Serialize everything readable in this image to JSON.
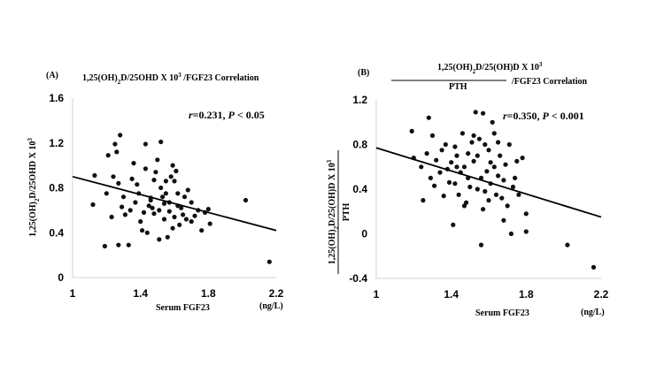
{
  "chart_data": [
    {
      "type": "scatter",
      "panel_label": "(A)",
      "title": "1,25(OH)2D/25OHD X 10³ /FGF23 Correlation",
      "title_parts": {
        "pre": "1,25(OH)",
        "sub": "2",
        "post": "D/25OHD X 10",
        "sup": "3",
        "tail": " /FGF23 Correlation"
      },
      "xlabel": "Serum FGF23",
      "xunit": "(ng/L)",
      "ylabel": "1,25(OH)2D/25OHD X 10³",
      "ylabel_parts": {
        "pre": "1,25(OH)",
        "sub": "2",
        "post": "D/25OHD X 10",
        "sup": "3"
      },
      "xlim": [
        1,
        2.2
      ],
      "ylim": [
        0,
        1.6
      ],
      "xticks": [
        "1",
        "1.4",
        "1.8",
        "2.2"
      ],
      "yticks": [
        "0",
        "0.4",
        "0.8",
        "1.2",
        "1.6"
      ],
      "annotation": {
        "r_sym": "r",
        "r_val": "=0.231, ",
        "p_sym": "P",
        "p_val": " < 0.05"
      },
      "trend": {
        "x": [
          1,
          2.2
        ],
        "y": [
          0.9,
          0.42
        ]
      },
      "points": [
        [
          1.13,
          0.91
        ],
        [
          1.12,
          0.65
        ],
        [
          1.19,
          0.28
        ],
        [
          1.2,
          0.75
        ],
        [
          1.21,
          1.09
        ],
        [
          1.23,
          0.54
        ],
        [
          1.24,
          0.9
        ],
        [
          1.25,
          1.19
        ],
        [
          1.26,
          1.12
        ],
        [
          1.27,
          0.29
        ],
        [
          1.28,
          1.27
        ],
        [
          1.27,
          0.84
        ],
        [
          1.29,
          0.63
        ],
        [
          1.3,
          0.72
        ],
        [
          1.31,
          0.56
        ],
        [
          1.34,
          0.6
        ],
        [
          1.33,
          0.29
        ],
        [
          1.35,
          0.88
        ],
        [
          1.36,
          1.02
        ],
        [
          1.37,
          0.67
        ],
        [
          1.38,
          0.83
        ],
        [
          1.39,
          0.75
        ],
        [
          1.4,
          0.5
        ],
        [
          1.41,
          0.42
        ],
        [
          1.42,
          0.58
        ],
        [
          1.43,
          0.97
        ],
        [
          1.44,
          0.4
        ],
        [
          1.43,
          1.19
        ],
        [
          1.45,
          0.64
        ],
        [
          1.46,
          0.71
        ],
        [
          1.47,
          0.62
        ],
        [
          1.48,
          0.87
        ],
        [
          1.49,
          0.94
        ],
        [
          1.5,
          1.05
        ],
        [
          1.51,
          0.6
        ],
        [
          1.52,
          0.8
        ],
        [
          1.53,
          0.72
        ],
        [
          1.54,
          0.66
        ],
        [
          1.55,
          0.86
        ],
        [
          1.56,
          0.36
        ],
        [
          1.57,
          0.59
        ],
        [
          1.58,
          0.9
        ],
        [
          1.59,
          1.0
        ],
        [
          1.6,
          0.54
        ],
        [
          1.61,
          0.95
        ],
        [
          1.62,
          0.75
        ],
        [
          1.63,
          0.47
        ],
        [
          1.64,
          0.62
        ],
        [
          1.65,
          0.56
        ],
        [
          1.67,
          0.52
        ],
        [
          1.68,
          0.78
        ],
        [
          1.7,
          0.67
        ],
        [
          1.72,
          0.55
        ],
        [
          1.74,
          0.6
        ],
        [
          1.76,
          0.42
        ],
        [
          1.78,
          0.58
        ],
        [
          1.8,
          0.61
        ],
        [
          1.81,
          0.48
        ],
        [
          1.51,
          0.34
        ],
        [
          1.55,
          0.75
        ],
        [
          1.52,
          1.21
        ],
        [
          1.57,
          0.67
        ],
        [
          1.59,
          0.44
        ],
        [
          1.62,
          0.64
        ],
        [
          1.66,
          0.72
        ],
        [
          1.7,
          0.5
        ],
        [
          1.48,
          0.57
        ],
        [
          1.46,
          0.69
        ],
        [
          1.54,
          0.52
        ],
        [
          1.6,
          0.86
        ],
        [
          2.02,
          0.69
        ],
        [
          2.16,
          0.14
        ]
      ]
    },
    {
      "type": "scatter",
      "panel_label": "(B)",
      "title": "1,25(OH)2D/25(OH)D X 10³ / PTH /FGF23 Correlation",
      "title_parts": {
        "pre": "1,25(OH)",
        "sub": "2",
        "post": "D/25(OH)D X 10",
        "sup": "3",
        "den": "PTH",
        "tail": "/FGF23 Correlation"
      },
      "xlabel": "Serum FGF23",
      "xunit": "(ng/L)",
      "ylabel": "1,25(OH)2D/25(OH)D X 10³ / PTH",
      "ylabel_parts": {
        "pre": "1,25(OH)",
        "sub": "2",
        "post": "D/25(OH)D X 10",
        "sup": "3",
        "den": "PTH"
      },
      "xlim": [
        1,
        2.2
      ],
      "ylim": [
        -0.4,
        1.2
      ],
      "xticks": [
        "1",
        "1.4",
        "1.8",
        "2.2"
      ],
      "yticks": [
        "-0.4",
        "0",
        "0.4",
        "0.8",
        "1.2"
      ],
      "annotation": {
        "r_sym": "r",
        "r_val": "=0.350, ",
        "p_sym": "P",
        "p_val": " < 0.001"
      },
      "trend": {
        "x": [
          1,
          2.2
        ],
        "y": [
          0.77,
          0.15
        ]
      },
      "points": [
        [
          1.19,
          0.92
        ],
        [
          1.2,
          0.68
        ],
        [
          1.24,
          0.6
        ],
        [
          1.25,
          0.3
        ],
        [
          1.27,
          0.72
        ],
        [
          1.28,
          1.04
        ],
        [
          1.29,
          0.5
        ],
        [
          1.3,
          0.88
        ],
        [
          1.31,
          0.43
        ],
        [
          1.32,
          0.66
        ],
        [
          1.34,
          0.55
        ],
        [
          1.35,
          0.75
        ],
        [
          1.37,
          0.8
        ],
        [
          1.38,
          0.58
        ],
        [
          1.39,
          0.46
        ],
        [
          1.4,
          0.64
        ],
        [
          1.41,
          0.08
        ],
        [
          1.42,
          0.78
        ],
        [
          1.43,
          0.7
        ],
        [
          1.44,
          0.35
        ],
        [
          1.45,
          0.55
        ],
        [
          1.46,
          0.9
        ],
        [
          1.47,
          0.6
        ],
        [
          1.48,
          0.28
        ],
        [
          1.49,
          0.5
        ],
        [
          1.5,
          0.42
        ],
        [
          1.51,
          0.82
        ],
        [
          1.52,
          0.65
        ],
        [
          1.53,
          1.09
        ],
        [
          1.54,
          0.7
        ],
        [
          1.55,
          0.85
        ],
        [
          1.56,
          0.5
        ],
        [
          1.57,
          0.22
        ],
        [
          1.58,
          0.38
        ],
        [
          1.59,
          0.56
        ],
        [
          1.6,
          0.75
        ],
        [
          1.61,
          0.45
        ],
        [
          1.62,
          1.0
        ],
        [
          1.63,
          0.6
        ],
        [
          1.64,
          0.35
        ],
        [
          1.65,
          0.52
        ],
        [
          1.66,
          0.7
        ],
        [
          1.67,
          0.32
        ],
        [
          1.68,
          0.48
        ],
        [
          1.69,
          0.62
        ],
        [
          1.7,
          0.25
        ],
        [
          1.71,
          0.8
        ],
        [
          1.73,
          0.42
        ],
        [
          1.75,
          0.65
        ],
        [
          1.76,
          0.35
        ],
        [
          1.78,
          0.68
        ],
        [
          1.8,
          0.18
        ],
        [
          1.8,
          0.02
        ],
        [
          1.56,
          -0.1
        ],
        [
          1.72,
          0.0
        ],
        [
          1.47,
          0.25
        ],
        [
          1.52,
          0.88
        ],
        [
          1.58,
          0.8
        ],
        [
          1.54,
          0.4
        ],
        [
          1.6,
          0.3
        ],
        [
          1.65,
          0.82
        ],
        [
          1.43,
          0.6
        ],
        [
          1.49,
          0.72
        ],
        [
          1.61,
          0.64
        ],
        [
          1.57,
          1.08
        ],
        [
          1.68,
          0.12
        ],
        [
          1.63,
          0.9
        ],
        [
          1.74,
          0.5
        ],
        [
          1.42,
          0.45
        ],
        [
          1.36,
          0.34
        ],
        [
          2.02,
          -0.1
        ],
        [
          2.16,
          -0.3
        ]
      ]
    }
  ]
}
